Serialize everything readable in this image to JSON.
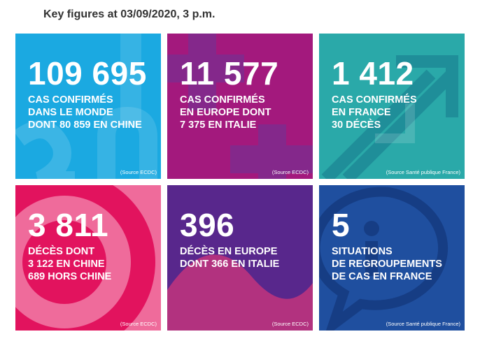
{
  "header": {
    "title": "Key figures at 03/09/2020, 3 p.m."
  },
  "tiles": [
    {
      "number": "109 695",
      "lines": [
        "CAS CONFIRMÉS",
        "DANS LE MONDE",
        "DONT 80 859 EN CHINE"
      ],
      "source": "(Source ECDC)"
    },
    {
      "number": "11 577",
      "lines": [
        "CAS CONFIRMÉS",
        "EN EUROPE DONT",
        "7 375 EN ITALIE"
      ],
      "source": "(Source ECDC)"
    },
    {
      "number": "1 412",
      "lines": [
        "CAS CONFIRMÉS",
        "EN FRANCE",
        "30 DÉCÈS"
      ],
      "source": "(Source Santé publique France)"
    },
    {
      "number": "3 811",
      "lines": [
        "DÉCÈS DONT",
        "3 122 EN CHINE",
        "689 HORS CHINE"
      ],
      "source": "(Source ECDC)"
    },
    {
      "number": "396",
      "lines": [
        "DÉCÈS EN EUROPE",
        "DONT 366 EN ITALIE"
      ],
      "source": "(Source ECDC)"
    },
    {
      "number": "5",
      "lines": [
        "SITUATIONS",
        "DE REGROUPEMENTS",
        "DE CAS EN FRANCE"
      ],
      "source": "(Source Santé publique France)"
    }
  ]
}
